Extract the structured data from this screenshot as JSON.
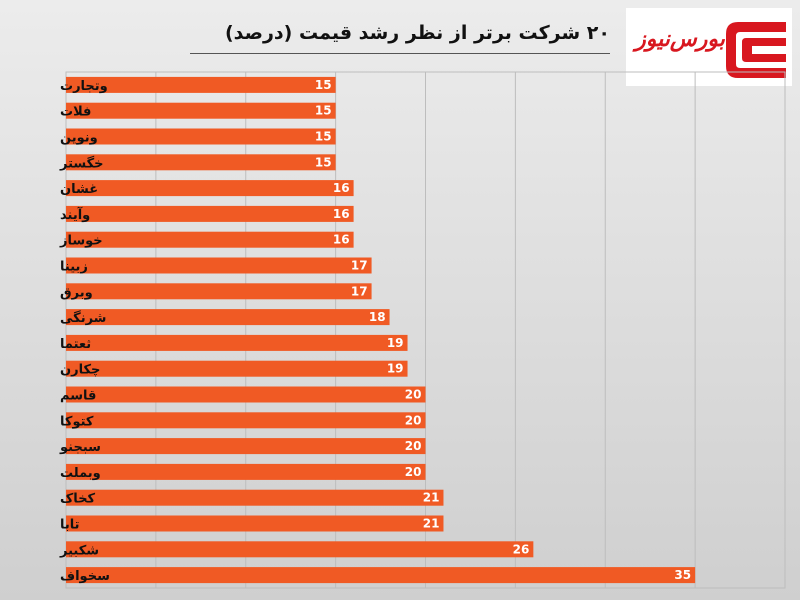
{
  "header": {
    "title": "۲۰ شرکت برتر از نظر رشد قیمت (درصد)"
  },
  "logo": {
    "text": "بورس‌نیوز",
    "brand_color": "#d8171f"
  },
  "colors": {
    "bar": "#f05a24",
    "grid": "#bdbdbd",
    "label_text": "#111111",
    "value_text": "#ffffff"
  },
  "chart_data": {
    "type": "bar",
    "orientation": "horizontal",
    "categories": [
      "وتجارت",
      "فلات",
      "ونوین",
      "خگستر",
      "غشان",
      "وآیند",
      "خوساز",
      "زبینا",
      "وبرق",
      "شرنگی",
      "ثعتما",
      "چکارن",
      "قاسم",
      "کتوکا",
      "سبجنو",
      "وبملت",
      "کخاک",
      "تابا",
      "شکبیر",
      "سخواف"
    ],
    "values": [
      15,
      15,
      15,
      15,
      16,
      16,
      16,
      17,
      17,
      18,
      19,
      19,
      20,
      20,
      20,
      20,
      21,
      21,
      26,
      35
    ],
    "xlim": [
      0,
      40
    ],
    "grid": true,
    "data_labels": true
  }
}
